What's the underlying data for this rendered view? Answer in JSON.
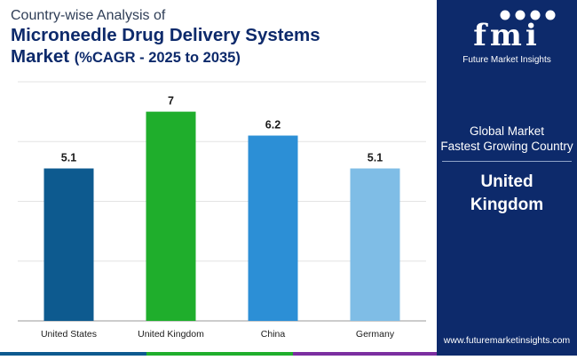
{
  "header": {
    "subtitle": "Country-wise Analysis of",
    "title_line1": "Microneedle Drug Delivery Systems",
    "title_line2_main": "Market",
    "title_line2_cagr": "(%CAGR - 2025 to 2035)"
  },
  "chart_data": {
    "type": "bar",
    "categories": [
      "United States",
      "United Kingdom",
      "China",
      "Germany"
    ],
    "values": [
      5.1,
      7,
      6.2,
      5.1
    ],
    "value_labels": [
      "5.1",
      "7",
      "6.2",
      "5.1"
    ],
    "bar_colors": [
      "#0d5a8f",
      "#1fae2c",
      "#2c8fd6",
      "#7fbde6"
    ],
    "title": "Microneedle Drug Delivery Systems Market (%CAGR - 2025 to 2035)",
    "xlabel": "",
    "ylabel": "",
    "ylim": [
      0,
      8
    ],
    "gridlines": [
      0,
      2,
      4,
      6,
      8
    ],
    "grid": true
  },
  "side_panel": {
    "logo_text": "fmi",
    "logo_tagline": "Future Market Insights",
    "global_label": "Global Market",
    "fastest_label": "Fastest Growing Country",
    "country_line1": "United",
    "country_line2": "Kingdom",
    "website": "www.futuremarketinsights.com",
    "background_color": "#0d2a6b"
  },
  "footer_bar_colors": [
    "#0d5a8f",
    "#1fae2c",
    "#7b2ea0"
  ]
}
